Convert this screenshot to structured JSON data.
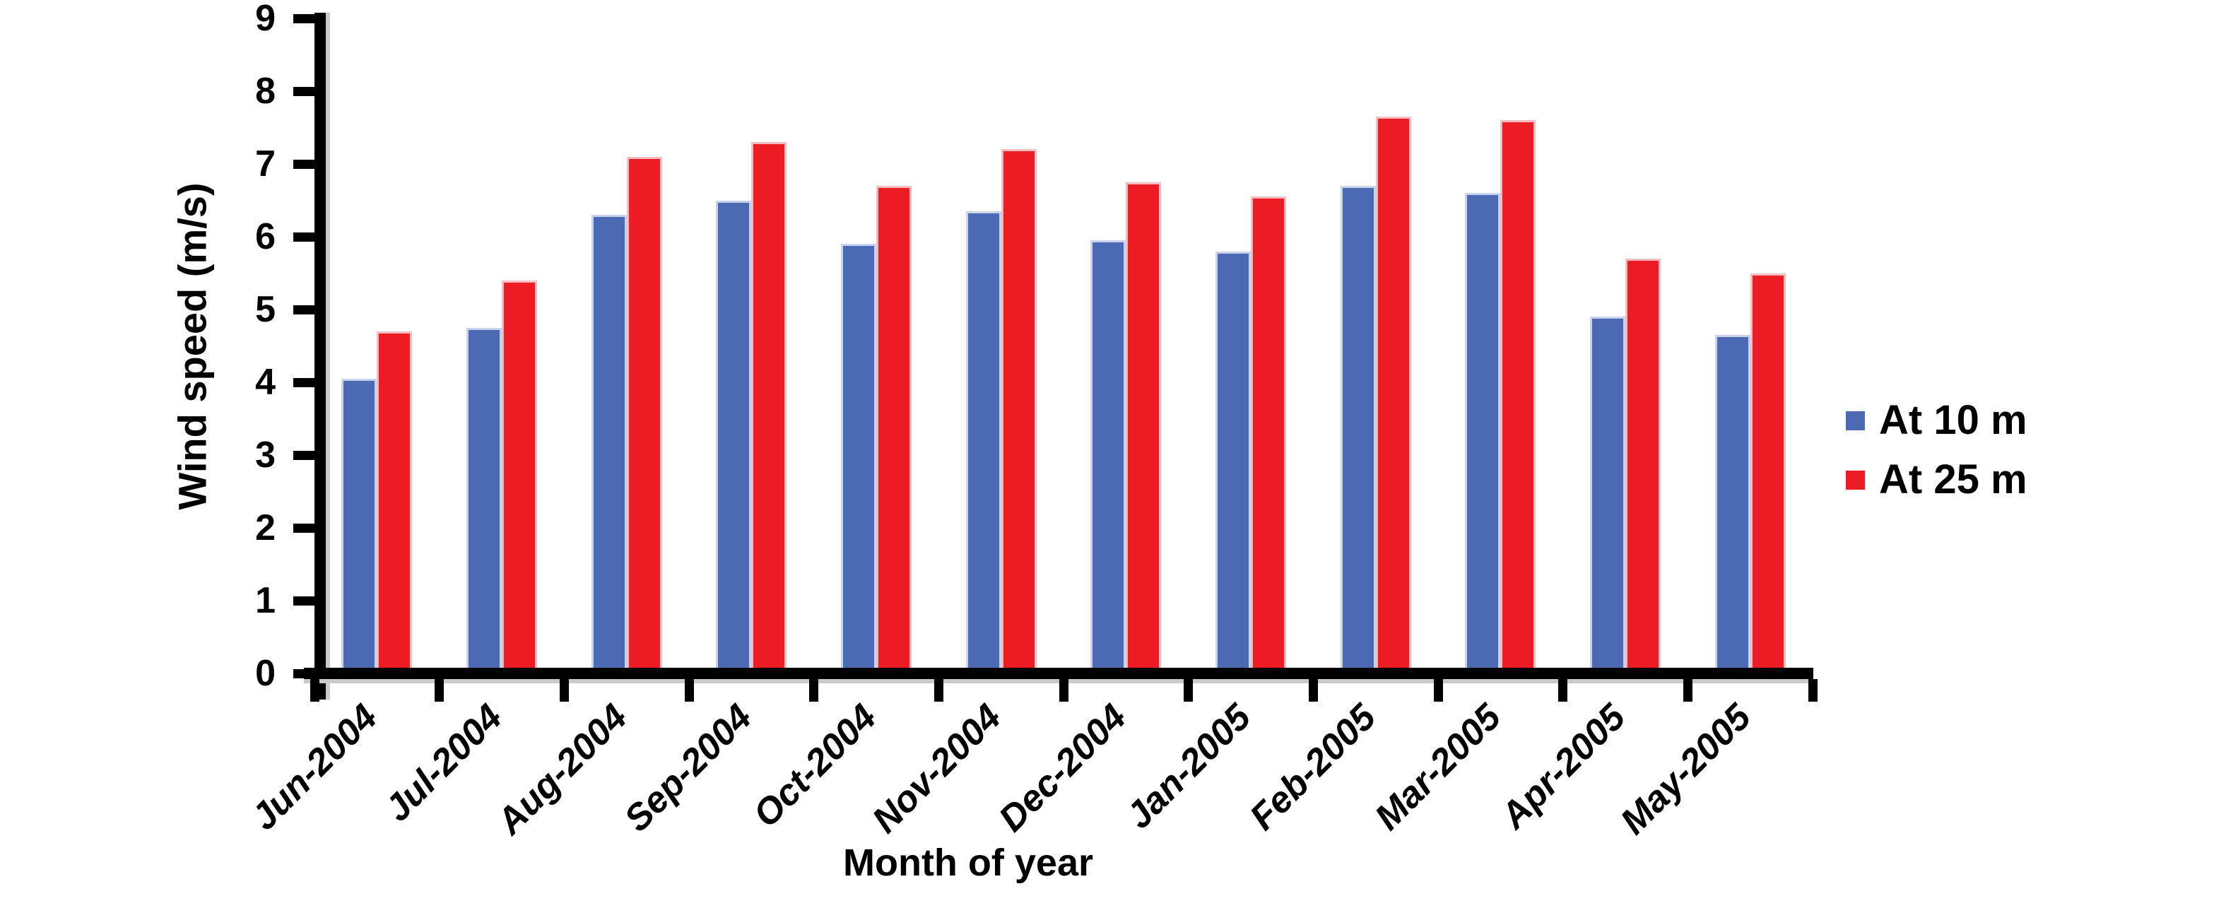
{
  "figure": {
    "background": "#ffffff",
    "axis_color": "#000000",
    "text_color": "#000000"
  },
  "legend": {
    "items": [
      {
        "label": "At 10 m",
        "swatch_color": "#4C69B4"
      },
      {
        "label": "At 25 m",
        "swatch_color": "#EC1C24"
      }
    ]
  },
  "chart_data": {
    "type": "bar",
    "title": "",
    "xlabel": "Month of year",
    "ylabel": "Wind speed (m/s)",
    "categories": [
      "Jun-2004",
      "Jul-2004",
      "Aug-2004",
      "Sep-2004",
      "Oct-2004",
      "Nov-2004",
      "Dec-2004",
      "Jan-2005",
      "Feb-2005",
      "Mar-2005",
      "Apr-2005",
      "May-2005"
    ],
    "series": [
      {
        "name": "At 10 m",
        "color": "#4C69B4",
        "edge_color": "#C9D3EE",
        "values": [
          4.05,
          4.75,
          6.3,
          6.5,
          5.9,
          6.35,
          5.95,
          5.8,
          6.7,
          6.6,
          4.9,
          4.65
        ]
      },
      {
        "name": "At 25 m",
        "color": "#EC1C24",
        "edge_color": "#F6BDC0",
        "values": [
          4.7,
          5.4,
          7.1,
          7.3,
          6.7,
          7.2,
          6.75,
          6.55,
          7.65,
          7.6,
          5.7,
          5.5
        ]
      }
    ],
    "ylim": [
      0,
      9
    ],
    "yticks": [
      0,
      1,
      2,
      3,
      4,
      5,
      6,
      7,
      8,
      9
    ],
    "grid": false,
    "legend_position": "right"
  }
}
